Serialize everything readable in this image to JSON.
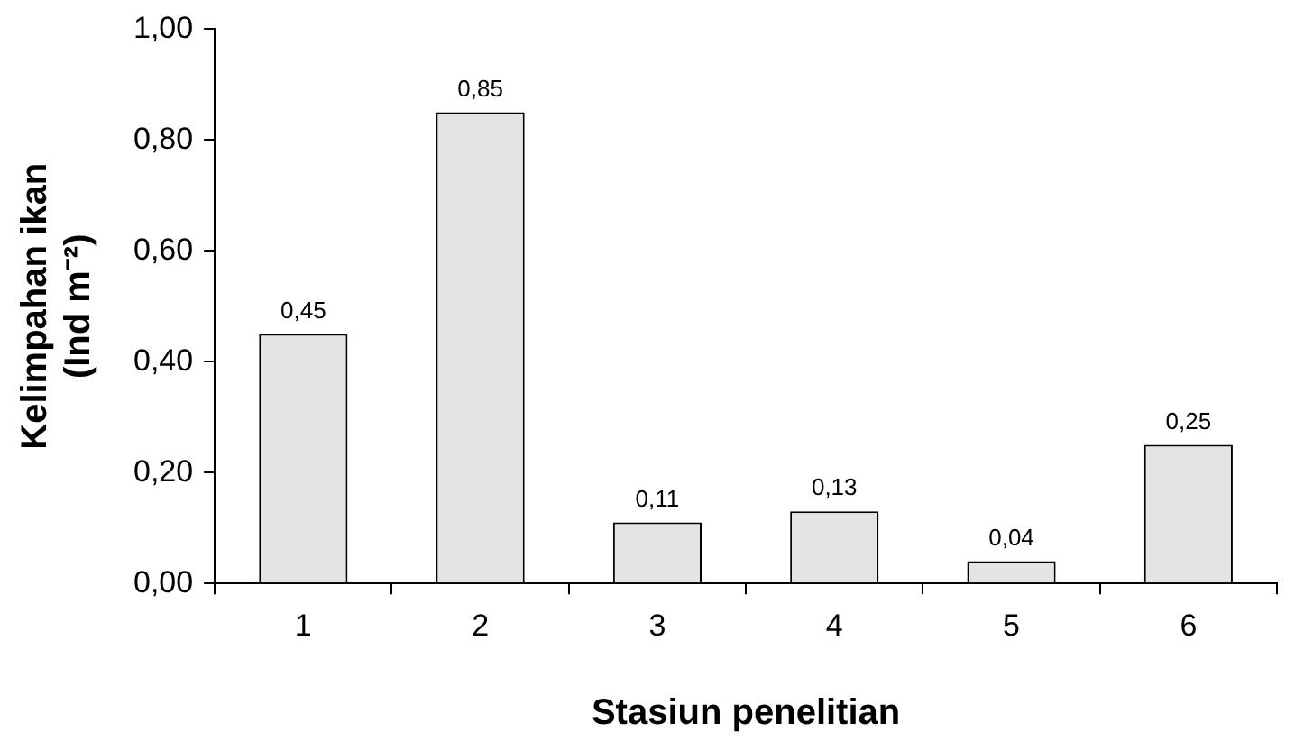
{
  "chart_data": {
    "type": "bar",
    "xlabel": "Stasiun penelitian",
    "ylabel": "Kelimpahan ikan\n(Ind m⁻²)",
    "categories": [
      "1",
      "2",
      "3",
      "4",
      "5",
      "6"
    ],
    "values": [
      0.45,
      0.85,
      0.11,
      0.13,
      0.04,
      0.25
    ],
    "value_labels": [
      "0,45",
      "0,85",
      "0,11",
      "0,13",
      "0,04",
      "0,25"
    ],
    "color": "#e4e4e4",
    "ylim": [
      0,
      1
    ],
    "yticks": [
      {
        "value": 0,
        "label": "0,00"
      },
      {
        "value": 0.2,
        "label": "0,20"
      },
      {
        "value": 0.4,
        "label": "0,40"
      },
      {
        "value": 0.6,
        "label": "0,60"
      },
      {
        "value": 0.8,
        "label": "0,80"
      },
      {
        "value": 1,
        "label": "1,00"
      }
    ],
    "grid": false,
    "legend": false
  }
}
